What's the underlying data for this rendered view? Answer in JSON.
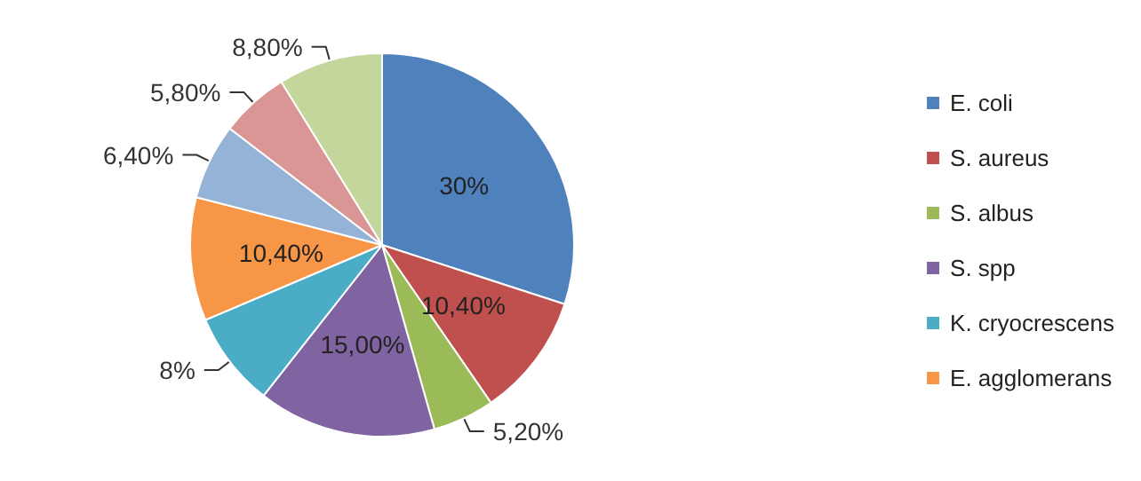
{
  "chart_data": {
    "type": "pie",
    "categories": [
      "E. coli",
      "S. aureus",
      "S. albus",
      "S. spp",
      "K. cryocrescens",
      "E. agglomerans",
      null,
      null,
      null
    ],
    "values": [
      30,
      10.4,
      5.2,
      15,
      8,
      10.4,
      6.4,
      5.8,
      8.8
    ],
    "value_labels": [
      "30%",
      "10,40%",
      "5,20%",
      "15,00%",
      "8%",
      "10,40%",
      "6,40%",
      "5,80%",
      "8,80%"
    ],
    "colors": [
      "#4f81bd",
      "#c0504d",
      "#9bbb59",
      "#8064a2",
      "#4bacc6",
      "#f79646",
      "#95b3d7",
      "#d99694",
      "#c3d69b"
    ],
    "legend": "right"
  }
}
